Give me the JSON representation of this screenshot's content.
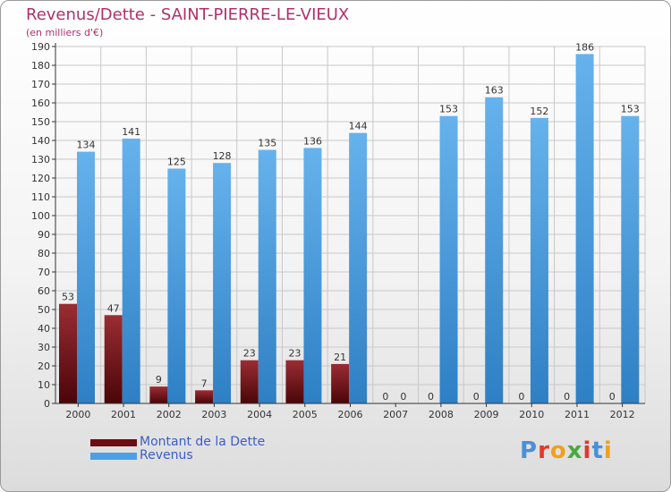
{
  "title": "Revenus/Dette - SAINT-PIERRE-LE-VIEUX",
  "subtitle": "(en milliers d'€)",
  "logo": {
    "text": "Proxiti",
    "letter_colors": [
      "#4a90d9",
      "#e3372d",
      "#f0a020",
      "#49a83f",
      "#e3372d",
      "#4a90d9",
      "#f0a020"
    ]
  },
  "legend": [
    {
      "label": "Montant de la Dette",
      "color": "#6b0d12"
    },
    {
      "label": "Revenus",
      "color": "#4aa0e6"
    }
  ],
  "colors": {
    "dette_top": "#9a2d33",
    "dette_bottom": "#4a0508",
    "revenus_top": "#66b2ec",
    "revenus_bottom": "#2e7fc4",
    "title": "#b0306a",
    "legend_text": "#3d5cc8",
    "grid": "#c8c8c8"
  },
  "chart_data": {
    "type": "bar",
    "title": "Revenus/Dette - SAINT-PIERRE-LE-VIEUX",
    "ylabel": "(en milliers d'€)",
    "categories": [
      "2000",
      "2001",
      "2002",
      "2003",
      "2004",
      "2005",
      "2006",
      "2007",
      "2008",
      "2009",
      "2010",
      "2011",
      "2012"
    ],
    "series": [
      {
        "name": "Montant de la Dette",
        "values": [
          53,
          47,
          9,
          7,
          23,
          23,
          21,
          0,
          0,
          0,
          0,
          0,
          0
        ]
      },
      {
        "name": "Revenus",
        "values": [
          134,
          141,
          125,
          128,
          135,
          136,
          144,
          0,
          153,
          163,
          152,
          186,
          153
        ]
      }
    ],
    "ylim": [
      0,
      190
    ],
    "yticks": [
      0,
      10,
      20,
      30,
      40,
      50,
      60,
      70,
      80,
      90,
      100,
      110,
      120,
      130,
      140,
      150,
      160,
      170,
      180,
      190
    ],
    "grid": true,
    "legend_position": "bottom-left"
  }
}
